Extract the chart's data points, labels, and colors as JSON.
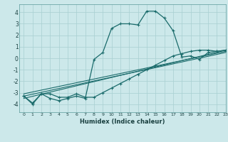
{
  "xlabel": "Humidex (Indice chaleur)",
  "xlim": [
    -0.5,
    23
  ],
  "ylim": [
    -4.7,
    4.7
  ],
  "xticks": [
    0,
    1,
    2,
    3,
    4,
    5,
    6,
    7,
    8,
    9,
    10,
    11,
    12,
    13,
    14,
    15,
    16,
    17,
    18,
    19,
    20,
    21,
    22,
    23
  ],
  "yticks": [
    -4,
    -3,
    -2,
    -1,
    0,
    1,
    2,
    3,
    4
  ],
  "background_color": "#cce8ea",
  "grid_color": "#a8cfd1",
  "line_color": "#1a6b6b",
  "series1_x": [
    0,
    1,
    2,
    3,
    4,
    5,
    6,
    7,
    8,
    9,
    10,
    11,
    12,
    13,
    14,
    15,
    16,
    17,
    18,
    19,
    20,
    21,
    22,
    23
  ],
  "series1_y": [
    -3.3,
    -4.0,
    -3.1,
    -3.5,
    -3.7,
    -3.5,
    -3.3,
    -3.5,
    -0.1,
    0.5,
    2.6,
    3.0,
    3.0,
    2.9,
    4.1,
    4.1,
    3.5,
    2.4,
    0.1,
    0.2,
    -0.1,
    0.5,
    0.6,
    0.7
  ],
  "series2_x": [
    0,
    1,
    2,
    3,
    4,
    5,
    6,
    7,
    8,
    9,
    10,
    11,
    12,
    13,
    14,
    15,
    16,
    17,
    18,
    19,
    20,
    21,
    22,
    23
  ],
  "series2_y": [
    -3.3,
    -3.9,
    -3.1,
    -3.1,
    -3.4,
    -3.4,
    -3.1,
    -3.4,
    -3.4,
    -3.0,
    -2.6,
    -2.2,
    -1.8,
    -1.4,
    -1.0,
    -0.6,
    -0.2,
    0.2,
    0.4,
    0.6,
    0.7,
    0.7,
    0.6,
    0.7
  ],
  "series3_x": [
    0,
    23
  ],
  "series3_y": [
    -3.5,
    0.7
  ],
  "series4_x": [
    0,
    23
  ],
  "series4_y": [
    -3.3,
    0.5
  ],
  "series5_x": [
    0,
    23
  ],
  "series5_y": [
    -3.1,
    0.6
  ]
}
